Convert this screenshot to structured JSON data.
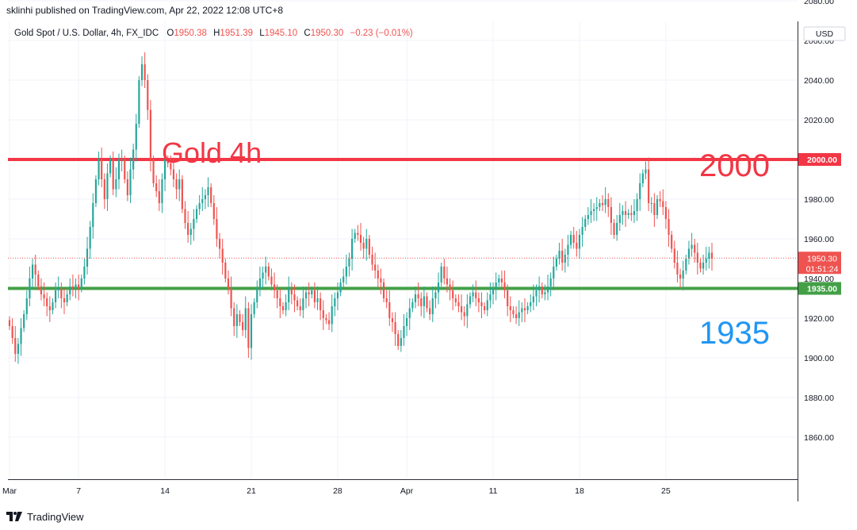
{
  "publisher_line": "sklinhi published on TradingView.com, Apr 22, 2022 12:08 UTC+8",
  "legend": {
    "symbol": "Gold Spot / U.S. Dollar, 4h, FX_IDC",
    "open_label": "O",
    "open": "1950.38",
    "high_label": "H",
    "high": "1951.39",
    "low_label": "L",
    "low": "1945.10",
    "close_label": "C",
    "close": "1950.30",
    "change": "−0.23 (−0.01%)"
  },
  "currency_button": "USD",
  "footer": {
    "brand": "TradingView"
  },
  "colors": {
    "up": "#26a69a",
    "down": "#ef5350",
    "resistance": "#f23645",
    "support": "#43a047",
    "support_text": "#2196f3",
    "grid": "#f0f3fa",
    "axis_text": "#131722",
    "axis_line": "#2a2e39"
  },
  "chart_data": {
    "type": "candlestick",
    "title": "Gold 4h",
    "y_unit": "USD",
    "ylim": [
      1845,
      2080
    ],
    "y_ticks": [
      "1860.00",
      "1880.00",
      "1900.00",
      "1920.00",
      "1940.00",
      "1960.00",
      "1980.00",
      "2000.00",
      "2020.00",
      "2040.00",
      "2060.00",
      "2080.00"
    ],
    "x_ticks": [
      "Mar",
      "7",
      "14",
      "21",
      "28",
      "Apr",
      "11",
      "18",
      "25"
    ],
    "grid": true,
    "levels": [
      {
        "label": "2000",
        "value": 2000,
        "price_tag": "2000.00",
        "style": "resistance"
      },
      {
        "label": "1935",
        "value": 1935,
        "price_tag": "1935.00",
        "style": "support"
      }
    ],
    "last_price": {
      "value": 1950.3,
      "price_tag": "1950.30",
      "countdown": "01:51:24"
    },
    "closes": [
      1916,
      1910,
      1902,
      1907,
      1915,
      1922,
      1930,
      1940,
      1947,
      1942,
      1936,
      1932,
      1930,
      1926,
      1924,
      1928,
      1934,
      1935,
      1930,
      1928,
      1932,
      1936,
      1935,
      1937,
      1935,
      1940,
      1946,
      1955,
      1966,
      1978,
      1990,
      2000,
      1990,
      1980,
      1993,
      2000,
      1985,
      1990,
      2000,
      2000,
      1990,
      1982,
      1995,
      2005,
      2018,
      2040,
      2048,
      2040,
      2025,
      2000,
      1988,
      1984,
      1978,
      1990,
      2000,
      1998,
      1995,
      1990,
      1985,
      1990,
      1975,
      1968,
      1962,
      1965,
      1970,
      1975,
      1978,
      1980,
      1982,
      1986,
      1978,
      1970,
      1960,
      1955,
      1948,
      1940,
      1935,
      1925,
      1916,
      1922,
      1918,
      1914,
      1925,
      1905,
      1922,
      1928,
      1935,
      1940,
      1943,
      1946,
      1941,
      1937,
      1934,
      1930,
      1926,
      1924,
      1928,
      1935,
      1932,
      1929,
      1926,
      1924,
      1930,
      1933,
      1932,
      1934,
      1928,
      1930,
      1924,
      1920,
      1919,
      1917,
      1926,
      1930,
      1933,
      1938,
      1941,
      1946,
      1950,
      1960,
      1963,
      1962,
      1958,
      1955,
      1960,
      1952,
      1947,
      1944,
      1940,
      1938,
      1930,
      1928,
      1920,
      1918,
      1912,
      1906,
      1910,
      1916,
      1920,
      1925,
      1928,
      1932,
      1930,
      1926,
      1931,
      1925,
      1922,
      1930,
      1933,
      1938,
      1946,
      1940,
      1937,
      1934,
      1930,
      1928,
      1926,
      1923,
      1921,
      1927,
      1931,
      1933,
      1930,
      1928,
      1926,
      1924,
      1929,
      1932,
      1935,
      1938,
      1940,
      1938,
      1934,
      1926,
      1924,
      1922,
      1920,
      1923,
      1925,
      1924,
      1926,
      1928,
      1931,
      1934,
      1936,
      1932,
      1933,
      1936,
      1940,
      1946,
      1950,
      1954,
      1948,
      1952,
      1957,
      1962,
      1958,
      1955,
      1962,
      1966,
      1970,
      1972,
      1974,
      1975,
      1976,
      1978,
      1977,
      1980,
      1976,
      1968,
      1962,
      1968,
      1972,
      1974,
      1972,
      1973,
      1972,
      1974,
      1980,
      1988,
      1993,
      1995,
      1978,
      1978,
      1972,
      1980,
      1979,
      1976,
      1970,
      1962,
      1955,
      1948,
      1942,
      1940,
      1944,
      1950,
      1955,
      1957,
      1953,
      1948,
      1945,
      1948,
      1950,
      1953,
      1950
    ]
  }
}
